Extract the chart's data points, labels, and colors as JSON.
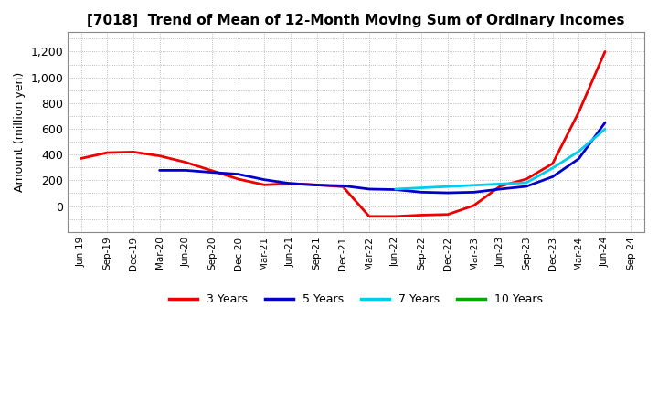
{
  "title": "[7018]  Trend of Mean of 12-Month Moving Sum of Ordinary Incomes",
  "ylabel": "Amount (million yen)",
  "background_color": "#ffffff",
  "tick_labels": [
    "Jun-19",
    "Sep-19",
    "Dec-19",
    "Mar-20",
    "Jun-20",
    "Sep-20",
    "Dec-20",
    "Mar-21",
    "Jun-21",
    "Sep-21",
    "Dec-21",
    "Mar-22",
    "Jun-22",
    "Sep-22",
    "Dec-22",
    "Mar-23",
    "Jun-23",
    "Sep-23",
    "Dec-23",
    "Mar-24",
    "Jun-24",
    "Sep-24"
  ],
  "series": {
    "3 Years": {
      "color": "#ee0000",
      "values": [
        370,
        415,
        420,
        390,
        340,
        275,
        210,
        165,
        175,
        165,
        150,
        -80,
        -80,
        -70,
        -65,
        5,
        155,
        210,
        330,
        730,
        1200,
        null
      ]
    },
    "5 Years": {
      "color": "#0000cc",
      "values": [
        null,
        null,
        null,
        278,
        278,
        262,
        248,
        205,
        175,
        163,
        158,
        132,
        128,
        108,
        103,
        108,
        132,
        153,
        228,
        368,
        648,
        null
      ]
    },
    "7 Years": {
      "color": "#00ccee",
      "values": [
        null,
        null,
        null,
        null,
        null,
        null,
        null,
        null,
        null,
        null,
        null,
        null,
        132,
        142,
        152,
        162,
        172,
        182,
        295,
        425,
        598,
        null
      ]
    },
    "10 Years": {
      "color": "#00aa00",
      "values": [
        null,
        null,
        null,
        null,
        null,
        null,
        null,
        null,
        null,
        null,
        null,
        null,
        null,
        null,
        null,
        null,
        null,
        null,
        null,
        null,
        null,
        null
      ]
    }
  },
  "ylim": [
    -200,
    1350
  ],
  "yticks": [
    0,
    200,
    400,
    600,
    800,
    1000,
    1200
  ],
  "legend_labels": [
    "3 Years",
    "5 Years",
    "7 Years",
    "10 Years"
  ],
  "legend_colors": [
    "#ee0000",
    "#0000cc",
    "#00ccee",
    "#00aa00"
  ],
  "figsize": [
    7.2,
    4.4
  ],
  "dpi": 100
}
